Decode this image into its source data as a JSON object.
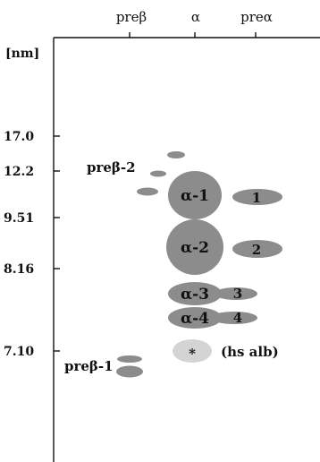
{
  "columns": [
    "preβ",
    "α",
    "preα"
  ],
  "y_axis": {
    "unit_label": "[nm]",
    "ticks": [
      "17.0",
      "12.2",
      "9.51",
      "8.16",
      "7.10"
    ]
  },
  "bands": [
    {
      "id": "a1",
      "label": "α-1",
      "column": "α"
    },
    {
      "id": "a2",
      "label": "α-2",
      "column": "α"
    },
    {
      "id": "a3",
      "label": "α-3",
      "column": "α"
    },
    {
      "id": "a4",
      "label": "α-4",
      "column": "α"
    },
    {
      "id": "p1",
      "label": "1",
      "column": "preα"
    },
    {
      "id": "p2",
      "label": "2",
      "column": "preα"
    },
    {
      "id": "p3",
      "label": "3",
      "column": "preα"
    },
    {
      "id": "p4",
      "label": "4",
      "column": "preα"
    },
    {
      "id": "alb",
      "label": "*",
      "column": "α"
    }
  ],
  "annotations": {
    "preb2": "preβ-2",
    "preb1": "preβ-1",
    "hs_alb": "(hs alb)"
  },
  "colors": {
    "spot": "#8c8c8c",
    "spot_alb": "#d4d4d4",
    "ink": "#111111"
  }
}
